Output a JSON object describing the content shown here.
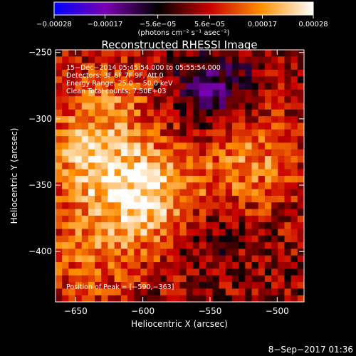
{
  "chart_data": {
    "type": "heatmap",
    "title": "Reconstructed RHESSI Image",
    "xlabel": "Heliocentric X (arcsec)",
    "ylabel": "Heliocentric Y (arcsec)",
    "xlim": [
      -665,
      -480
    ],
    "ylim": [
      -438,
      -248
    ],
    "x_ticks": [
      -650,
      -600,
      -550,
      -500
    ],
    "x_tick_labels": [
      "−650",
      "−600",
      "−550",
      "−500"
    ],
    "y_ticks": [
      -250,
      -300,
      -350,
      -400
    ],
    "y_tick_labels": [
      "−250",
      "−300",
      "−350",
      "−400"
    ],
    "grid": false,
    "colorbar": {
      "placement": "top",
      "range": [
        -0.00028,
        0.00028
      ],
      "ticks": [
        -0.00028,
        -0.00017,
        -5.6e-05,
        5.6e-05,
        0.00017,
        0.00028
      ],
      "tick_labels": [
        "−0.00028",
        "−0.00017",
        "−5.6e−05",
        "5.6e−05",
        "0.00017",
        "0.00028"
      ],
      "unit_label": "(photons cm⁻² s⁻¹ asec⁻²)",
      "colors": [
        "#0000ff",
        "#7a00b0",
        "#000000",
        "#c80000",
        "#ff9000",
        "#ffffff"
      ]
    },
    "sources": [
      {
        "x": -592,
        "y": -363,
        "strength": 1.0
      },
      {
        "x": -640,
        "y": -335,
        "strength": 0.7
      },
      {
        "x": -520,
        "y": -330,
        "strength": 0.65
      },
      {
        "x": -625,
        "y": -290,
        "strength": 0.45
      },
      {
        "x": -645,
        "y": -410,
        "strength": 0.45
      }
    ],
    "negative_regions": [
      {
        "x": -548,
        "y": -280,
        "strength": 0.9
      },
      {
        "x": -560,
        "y": -385,
        "strength": 0.55
      }
    ],
    "annotations": {
      "time": "15−Dec−2014 05:45:54.000 to 05:55:54.000",
      "detectors": "Detectors: 3F 6F 7F 9F, Att 0",
      "energy": "Energy Range: 25.0 − 50.0 keV",
      "clean": "Clean    Total counts: 7.50E+03",
      "peak": "Position of Peak = [−590,−363]"
    }
  },
  "footer": {
    "date": "8−Sep−2017 01:36"
  }
}
